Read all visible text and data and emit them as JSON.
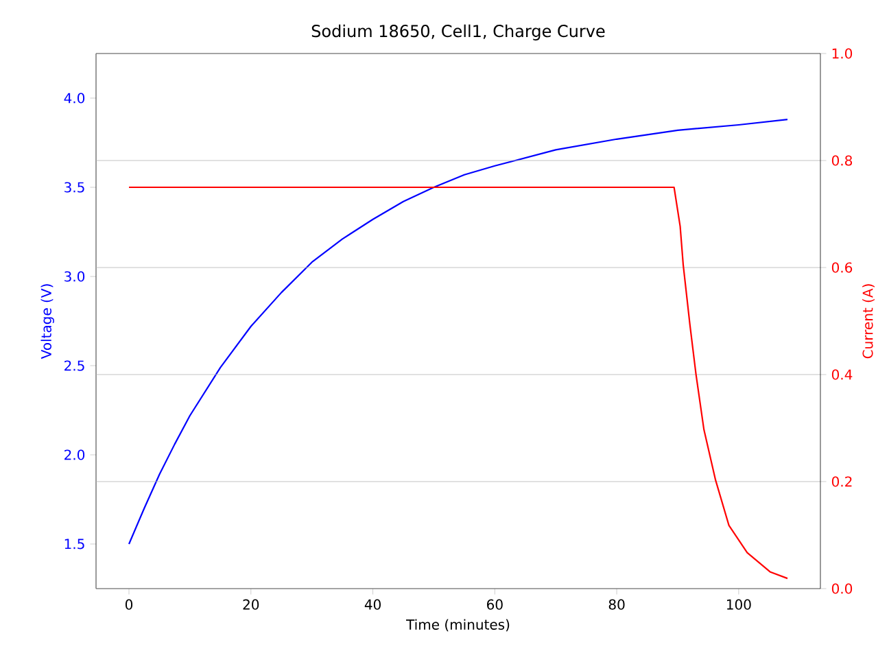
{
  "chart_data": {
    "type": "line",
    "title": "Sodium 18650, Cell1, Charge Curve",
    "xlabel": "Time (minutes)",
    "ylabel": "Voltage (V)",
    "y2label": "Current (A)",
    "xlim": [
      -5.4,
      113.4
    ],
    "xticks": [
      0,
      20,
      40,
      60,
      80,
      100
    ],
    "ylim": [
      1.25,
      4.25
    ],
    "yticks": [
      1.5,
      {
        "value": 2,
        "label": "2.0"
      },
      2.5,
      {
        "value": 3,
        "label": "3.0"
      },
      3.5,
      {
        "value": 4,
        "label": "4.0"
      }
    ],
    "y2lim": [
      0,
      1
    ],
    "y2ticks": [
      {
        "value": 0,
        "label": "0.0"
      },
      0.2,
      0.4,
      0.6,
      0.8,
      {
        "value": 1,
        "label": "1.0"
      }
    ],
    "grid": "y",
    "series": [
      {
        "color": "#0000ff",
        "x": [
          0,
          2.5,
          5,
          7.5,
          10,
          15,
          20,
          25,
          30,
          35,
          40,
          45,
          50,
          55,
          60,
          70,
          80,
          90,
          100,
          108
        ],
        "values": [
          1.5,
          1.7,
          1.89,
          2.06,
          2.22,
          2.49,
          2.72,
          2.91,
          3.08,
          3.21,
          3.32,
          3.42,
          3.5,
          3.57,
          3.62,
          3.71,
          3.77,
          3.82,
          3.85,
          3.88
        ]
      },
      {
        "color": "#ff0000",
        "axis": "y2",
        "x": [
          0,
          89.4,
          90.4,
          90.9,
          92.0,
          93.0,
          94.3,
          96.2,
          98.4,
          101.4,
          105.2,
          108.0
        ],
        "values": [
          0.75,
          0.75,
          0.677,
          0.605,
          0.493,
          0.4,
          0.297,
          0.203,
          0.118,
          0.067,
          0.031,
          0.019
        ]
      }
    ]
  }
}
